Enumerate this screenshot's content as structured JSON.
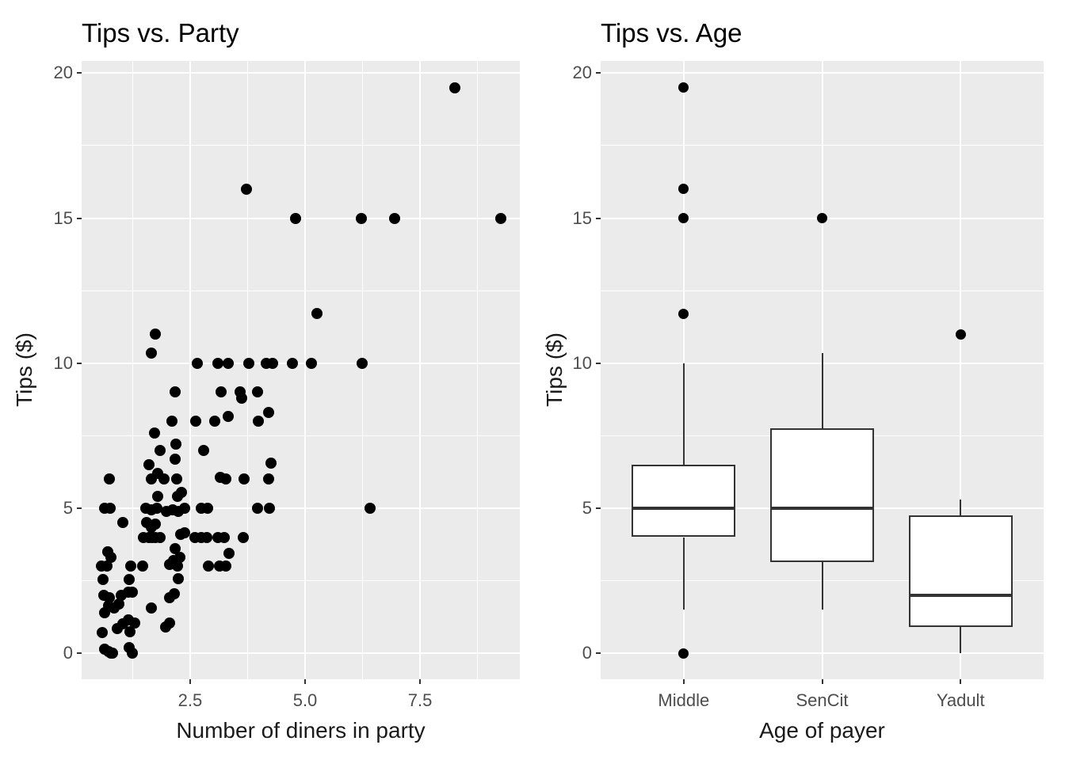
{
  "colors": {
    "background": "#ffffff",
    "panel_background": "#ebebeb",
    "gridline": "#ffffff",
    "point": "#000000",
    "box_stroke": "#333333",
    "tick_mark": "#333333",
    "axis_text": "#4d4d4d",
    "axis_title": "#1a1a1a",
    "plot_title": "#000000"
  },
  "chart_data": [
    {
      "type": "scatter",
      "title": "Tips vs. Party",
      "xlabel": "Number of diners in party",
      "ylabel": "Tips ($)",
      "x_ticks": [
        2.5,
        5.0,
        7.5
      ],
      "x_tick_labels": [
        "2.5",
        "5.0",
        "7.5"
      ],
      "x_minor": [
        1.25,
        3.75,
        6.25,
        8.75
      ],
      "y_ticks": [
        0,
        5,
        10,
        15,
        20
      ],
      "y_tick_labels": [
        "0",
        "5",
        "10",
        "15",
        "20"
      ],
      "y_minor": [
        2.5,
        7.5,
        12.5,
        17.5
      ],
      "xlim": [
        0.14,
        9.67
      ],
      "ylim": [
        -0.9,
        20.42
      ],
      "grid": true,
      "points": [
        [
          8.25,
          19.5
        ],
        [
          3.72,
          16
        ],
        [
          4.8,
          15
        ],
        [
          6.22,
          15
        ],
        [
          6.95,
          15
        ],
        [
          9.25,
          15
        ],
        [
          5.26,
          11.7
        ],
        [
          1.74,
          11
        ],
        [
          1.66,
          10.35
        ],
        [
          2.65,
          10
        ],
        [
          3.11,
          10
        ],
        [
          3.33,
          10
        ],
        [
          3.77,
          10
        ],
        [
          4.16,
          10
        ],
        [
          4.29,
          10
        ],
        [
          4.72,
          10
        ],
        [
          5.14,
          10
        ],
        [
          6.24,
          10
        ],
        [
          2.18,
          9
        ],
        [
          3.18,
          9
        ],
        [
          3.59,
          9
        ],
        [
          3.97,
          9
        ],
        [
          3.62,
          8.8
        ],
        [
          2.11,
          8
        ],
        [
          2.62,
          8
        ],
        [
          3.03,
          8
        ],
        [
          3.32,
          8.15
        ],
        [
          3.98,
          8
        ],
        [
          4.21,
          8.3
        ],
        [
          1.72,
          7.6
        ],
        [
          1.84,
          7
        ],
        [
          2.19,
          7.2
        ],
        [
          2.8,
          7
        ],
        [
          2.18,
          6.7
        ],
        [
          4.26,
          6.55
        ],
        [
          1.6,
          6.5
        ],
        [
          0.75,
          6
        ],
        [
          1.65,
          6
        ],
        [
          1.8,
          6.2
        ],
        [
          1.93,
          6
        ],
        [
          2.2,
          6
        ],
        [
          3.15,
          6.05
        ],
        [
          3.27,
          6
        ],
        [
          3.68,
          6
        ],
        [
          4.2,
          6
        ],
        [
          1.8,
          5.4
        ],
        [
          2.22,
          5.4
        ],
        [
          2.32,
          5.55
        ],
        [
          0.64,
          5
        ],
        [
          0.76,
          5
        ],
        [
          1.53,
          5
        ],
        [
          1.66,
          4.95
        ],
        [
          1.78,
          5
        ],
        [
          1.99,
          4.9
        ],
        [
          2.12,
          4.95
        ],
        [
          2.25,
          4.9
        ],
        [
          2.38,
          5
        ],
        [
          2.75,
          5
        ],
        [
          2.88,
          5
        ],
        [
          3.96,
          5
        ],
        [
          4.22,
          5
        ],
        [
          6.41,
          5
        ],
        [
          1.03,
          4.5
        ],
        [
          1.55,
          4.5
        ],
        [
          1.65,
          4.35
        ],
        [
          1.75,
          4.45
        ],
        [
          1.48,
          4
        ],
        [
          1.6,
          4
        ],
        [
          1.67,
          4
        ],
        [
          1.75,
          4
        ],
        [
          1.85,
          4
        ],
        [
          2.3,
          4.1
        ],
        [
          2.38,
          4.15
        ],
        [
          2.61,
          4
        ],
        [
          2.74,
          4
        ],
        [
          2.87,
          4
        ],
        [
          3.1,
          4
        ],
        [
          3.25,
          4
        ],
        [
          3.65,
          4
        ],
        [
          2.17,
          3.6
        ],
        [
          0.71,
          3.5
        ],
        [
          0.78,
          3.3
        ],
        [
          2.14,
          3.2
        ],
        [
          2.27,
          3.3
        ],
        [
          3.34,
          3.45
        ],
        [
          0.57,
          3
        ],
        [
          0.69,
          3
        ],
        [
          1.21,
          3
        ],
        [
          1.47,
          3
        ],
        [
          2.06,
          3.05
        ],
        [
          2.23,
          3
        ],
        [
          2.9,
          3
        ],
        [
          3.14,
          3
        ],
        [
          3.27,
          3
        ],
        [
          0.61,
          2.55
        ],
        [
          1.18,
          2.55
        ],
        [
          2.25,
          2.58
        ],
        [
          0.63,
          2
        ],
        [
          0.75,
          1.9
        ],
        [
          1.0,
          2
        ],
        [
          1.15,
          2.1
        ],
        [
          1.25,
          2.1
        ],
        [
          2.05,
          1.9
        ],
        [
          2.15,
          2.05
        ],
        [
          0.72,
          1.65
        ],
        [
          0.85,
          1.55
        ],
        [
          0.95,
          1.7
        ],
        [
          1.65,
          1.55
        ],
        [
          0.64,
          1.4
        ],
        [
          0.92,
          0.85
        ],
        [
          1.03,
          1
        ],
        [
          1.16,
          1.15
        ],
        [
          1.29,
          1.05
        ],
        [
          1.19,
          0.75
        ],
        [
          1.97,
          0.9
        ],
        [
          2.06,
          1.05
        ],
        [
          0.59,
          0.7
        ],
        [
          0.64,
          0.15
        ],
        [
          0.72,
          0.05
        ],
        [
          0.78,
          0
        ],
        [
          0.82,
          0
        ],
        [
          1.18,
          0.18
        ],
        [
          1.24,
          0
        ]
      ]
    },
    {
      "type": "boxplot",
      "title": "Tips vs. Age",
      "xlabel": "Age of payer",
      "ylabel": "Tips ($)",
      "categories": [
        "Middle",
        "SenCit",
        "Yadult"
      ],
      "y_ticks": [
        0,
        5,
        10,
        15,
        20
      ],
      "y_tick_labels": [
        "0",
        "5",
        "10",
        "15",
        "20"
      ],
      "y_minor": [
        2.5,
        7.5,
        12.5,
        17.5
      ],
      "xlim": [
        0.4,
        3.6
      ],
      "ylim": [
        -0.9,
        20.42
      ],
      "grid": true,
      "box_width": 0.75,
      "boxes": [
        {
          "category": "Middle",
          "whisker_low": 1.5,
          "q1": 4.0,
          "median": 5.0,
          "q3": 6.5,
          "whisker_high": 10.0,
          "outliers": [
            0,
            11.7,
            15,
            16,
            19.5
          ]
        },
        {
          "category": "SenCit",
          "whisker_low": 1.5,
          "q1": 3.15,
          "median": 5.0,
          "q3": 7.75,
          "whisker_high": 10.35,
          "outliers": [
            15
          ]
        },
        {
          "category": "Yadult",
          "whisker_low": 0.0,
          "q1": 0.9,
          "median": 2.0,
          "q3": 4.75,
          "whisker_high": 5.3,
          "outliers": [
            11.0
          ]
        }
      ]
    }
  ]
}
